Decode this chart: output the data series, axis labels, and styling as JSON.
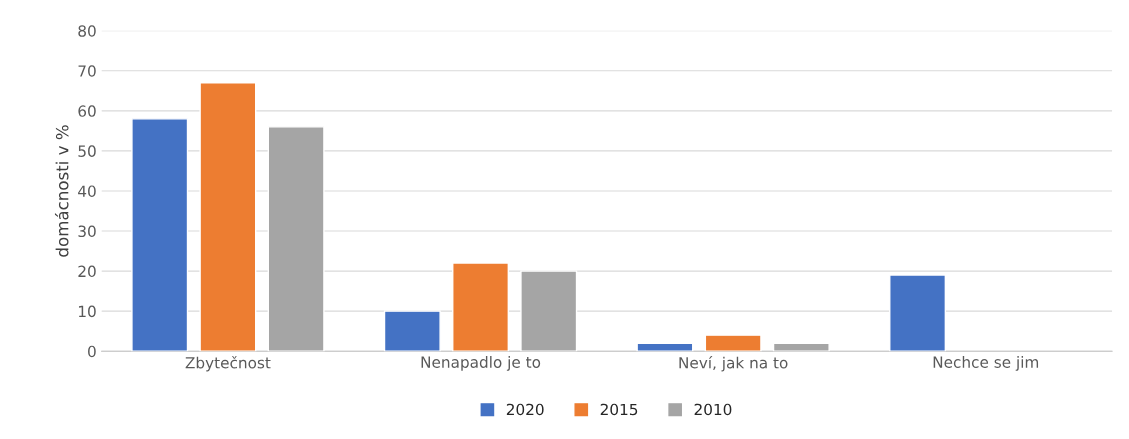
{
  "chart_data": {
    "type": "bar",
    "ylabel": "domácnosti v %",
    "categories": [
      "Zbytečnost",
      "Nenapadlo je to",
      "Neví, jak na to",
      "Nechce se jim"
    ],
    "series": [
      {
        "name": "2020",
        "color": "#4472c4",
        "values": [
          58,
          10,
          2,
          19
        ]
      },
      {
        "name": "2015",
        "color": "#ed7d31",
        "values": [
          67,
          22,
          4,
          null
        ]
      },
      {
        "name": "2010",
        "color": "#a5a5a5",
        "values": [
          56,
          20,
          2,
          null
        ]
      }
    ],
    "ylim": [
      0,
      80
    ],
    "yticks": [
      0,
      10,
      20,
      30,
      40,
      50,
      60,
      70,
      80
    ],
    "grid": "y",
    "legend": "bottom"
  }
}
